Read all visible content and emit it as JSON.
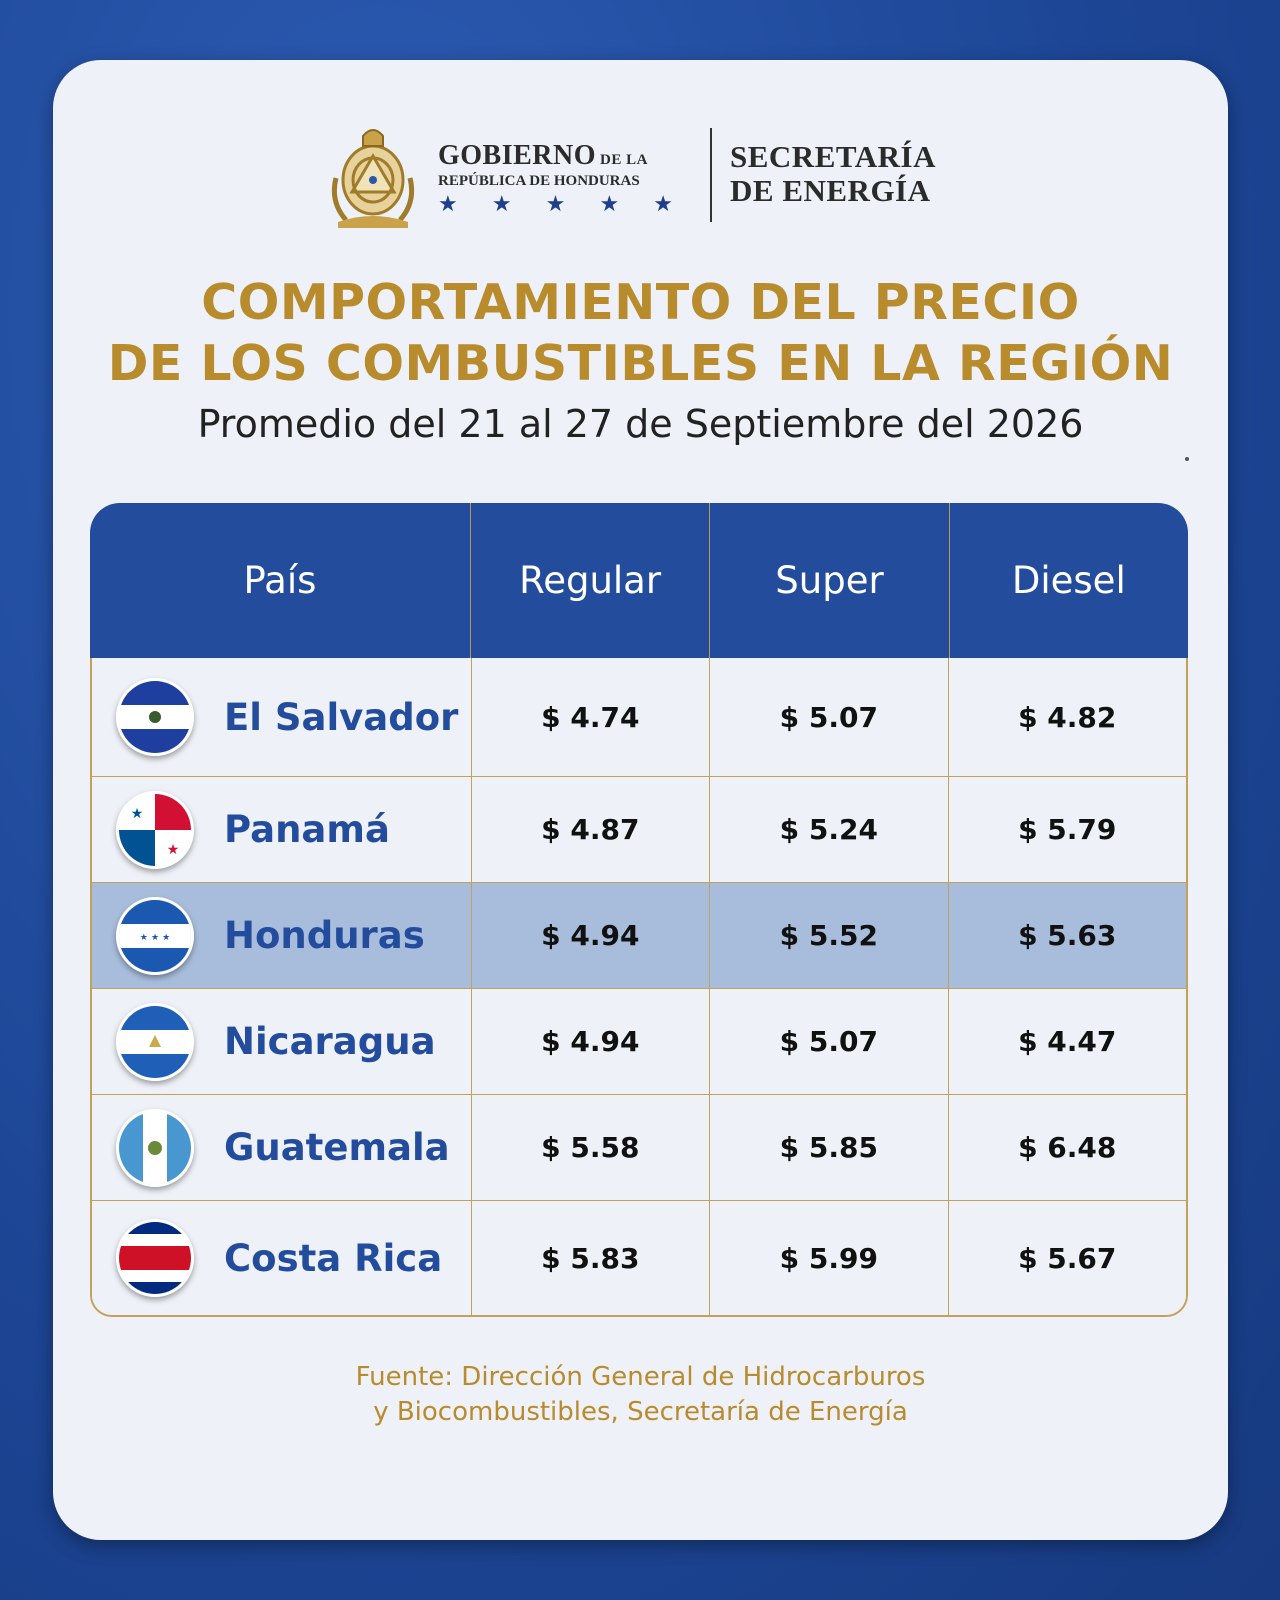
{
  "header": {
    "gov_main": "GOBIERNO",
    "gov_small": "DE LA",
    "gov_sub": "REPÚBLICA DE HONDURAS",
    "secretaria_line1": "SECRETARÍA",
    "secretaria_line2": "DE ENERGÍA",
    "stars": [
      "★",
      "★",
      "★",
      "★",
      "★"
    ]
  },
  "title_line1": "COMPORTAMIENTO DEL PRECIO",
  "title_line2": "DE LOS COMBUSTIBLES EN LA REGIÓN",
  "subtitle": "Promedio del 21 al 27 de Septiembre del 2026",
  "table": {
    "headers": [
      "País",
      "Regular",
      "Super",
      "Diesel"
    ],
    "rows": [
      {
        "country": "El Salvador",
        "flag": "el-salvador-flag",
        "regular": "$ 4.74",
        "super": "$ 5.07",
        "diesel": "$ 4.82",
        "highlight": false
      },
      {
        "country": "Panamá",
        "flag": "panama-flag",
        "regular": "$ 4.87",
        "super": "$ 5.24",
        "diesel": "$ 5.79",
        "highlight": false
      },
      {
        "country": "Honduras",
        "flag": "honduras-flag",
        "regular": "$ 4.94",
        "super": "$ 5.52",
        "diesel": "$ 5.63",
        "highlight": true
      },
      {
        "country": "Nicaragua",
        "flag": "nicaragua-flag",
        "regular": "$ 4.94",
        "super": "$ 5.07",
        "diesel": "$ 4.47",
        "highlight": false
      },
      {
        "country": "Guatemala",
        "flag": "guatemala-flag",
        "regular": "$ 5.58",
        "super": "$ 5.85",
        "diesel": "$ 6.48",
        "highlight": false
      },
      {
        "country": "Costa Rica",
        "flag": "costa-rica-flag",
        "regular": "$ 5.83",
        "super": "$ 5.99",
        "diesel": "$ 5.67",
        "highlight": false
      }
    ]
  },
  "source_line1": "Fuente: Dirección General de Hidrocarburos",
  "source_line2": "y Biocombustibles, Secretaría de Energía",
  "colors": {
    "brand_blue": "#234d9c",
    "gold": "#b88b2c",
    "highlight_row": "#a8bddc"
  }
}
